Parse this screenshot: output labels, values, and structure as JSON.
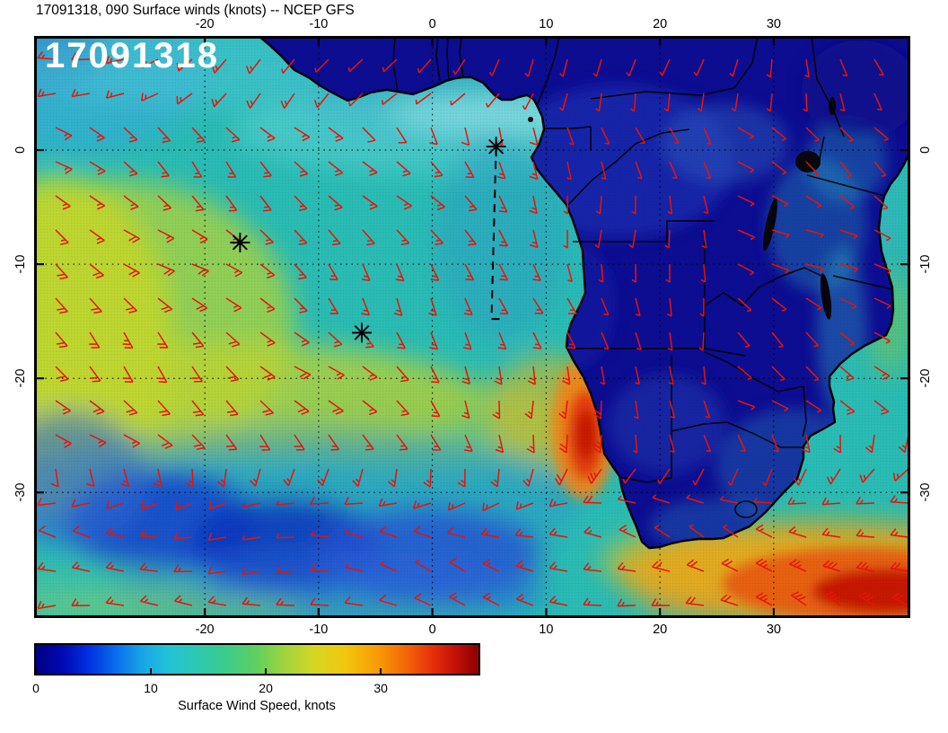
{
  "header": {
    "title": "17091318, 090 Surface winds (knots) -- NCEP GFS"
  },
  "map": {
    "run_label": "17091318"
  },
  "colorbar": {
    "label": "Surface Wind Speed, knots",
    "ticks": [
      0,
      10,
      20,
      30
    ],
    "min": 0,
    "max": 38.5,
    "stops": [
      [
        0,
        "#000082"
      ],
      [
        0.06,
        "#0009b4"
      ],
      [
        0.12,
        "#0031e0"
      ],
      [
        0.18,
        "#0a6cee"
      ],
      [
        0.24,
        "#18a6e6"
      ],
      [
        0.3,
        "#22c2d6"
      ],
      [
        0.36,
        "#2cc8b4"
      ],
      [
        0.43,
        "#3ccc8a"
      ],
      [
        0.5,
        "#60d05e"
      ],
      [
        0.56,
        "#9ed43e"
      ],
      [
        0.63,
        "#d6d622"
      ],
      [
        0.7,
        "#f2c60e"
      ],
      [
        0.77,
        "#f89c06"
      ],
      [
        0.84,
        "#f26408"
      ],
      [
        0.9,
        "#e42c0a"
      ],
      [
        0.95,
        "#c21008"
      ],
      [
        1,
        "#8c0000"
      ]
    ]
  },
  "chart_data": {
    "type": "heatmap",
    "title": "17091318, 090 Surface winds (knots) -- NCEP GFS",
    "variable": "Surface wind speed",
    "units": "knots",
    "model": "NCEP GFS",
    "run": "17091318",
    "forecast_hour": 90,
    "lon_range": [
      -35,
      42
    ],
    "lat_range": [
      -41,
      10
    ],
    "lon_ticks": [
      -20,
      -10,
      0,
      10,
      20,
      30
    ],
    "lat_ticks": [
      0,
      -10,
      -20,
      -30
    ],
    "grid": "dotted graticule every 10 degrees, ticks on all four axes",
    "colorbar": {
      "min": 0,
      "max": 38.5,
      "ticks": [
        0,
        10,
        20,
        30
      ],
      "label": "Surface Wind Speed, knots"
    },
    "overlay": "red wind barbs on a regular ~3-degree grid over ocean and land",
    "barb_color": "#e61408",
    "markers": [
      {
        "lon": -16.9,
        "lat": -8.1
      },
      {
        "lon": -6.2,
        "lat": -16.0
      },
      {
        "lon": 5.6,
        "lat": 0.3
      }
    ],
    "dashed_line": {
      "from": {
        "lon": 5.6,
        "lat": 0.3
      },
      "to": {
        "lon": 5.2,
        "lat": -14.8
      }
    },
    "features": [
      {
        "region": "SE trade-wind belt, tropical South Atlantic",
        "approx_knots": [
          18,
          27
        ]
      },
      {
        "region": "Benguela coastal jet off Namibia coast (~14E, 27S)",
        "approx_knots": [
          30,
          38
        ]
      },
      {
        "region": "Storm band southeast of South Africa (bottom right)",
        "approx_knots": [
          28,
          38
        ]
      },
      {
        "region": "Weak-wind lows, central South Atlantic (~30-37S)",
        "approx_knots": [
          3,
          10
        ]
      },
      {
        "region": "African continental interior",
        "approx_knots": [
          2,
          10
        ]
      },
      {
        "region": "Equatorial Gulf of Guinea band",
        "approx_knots": [
          10,
          18
        ]
      }
    ]
  }
}
